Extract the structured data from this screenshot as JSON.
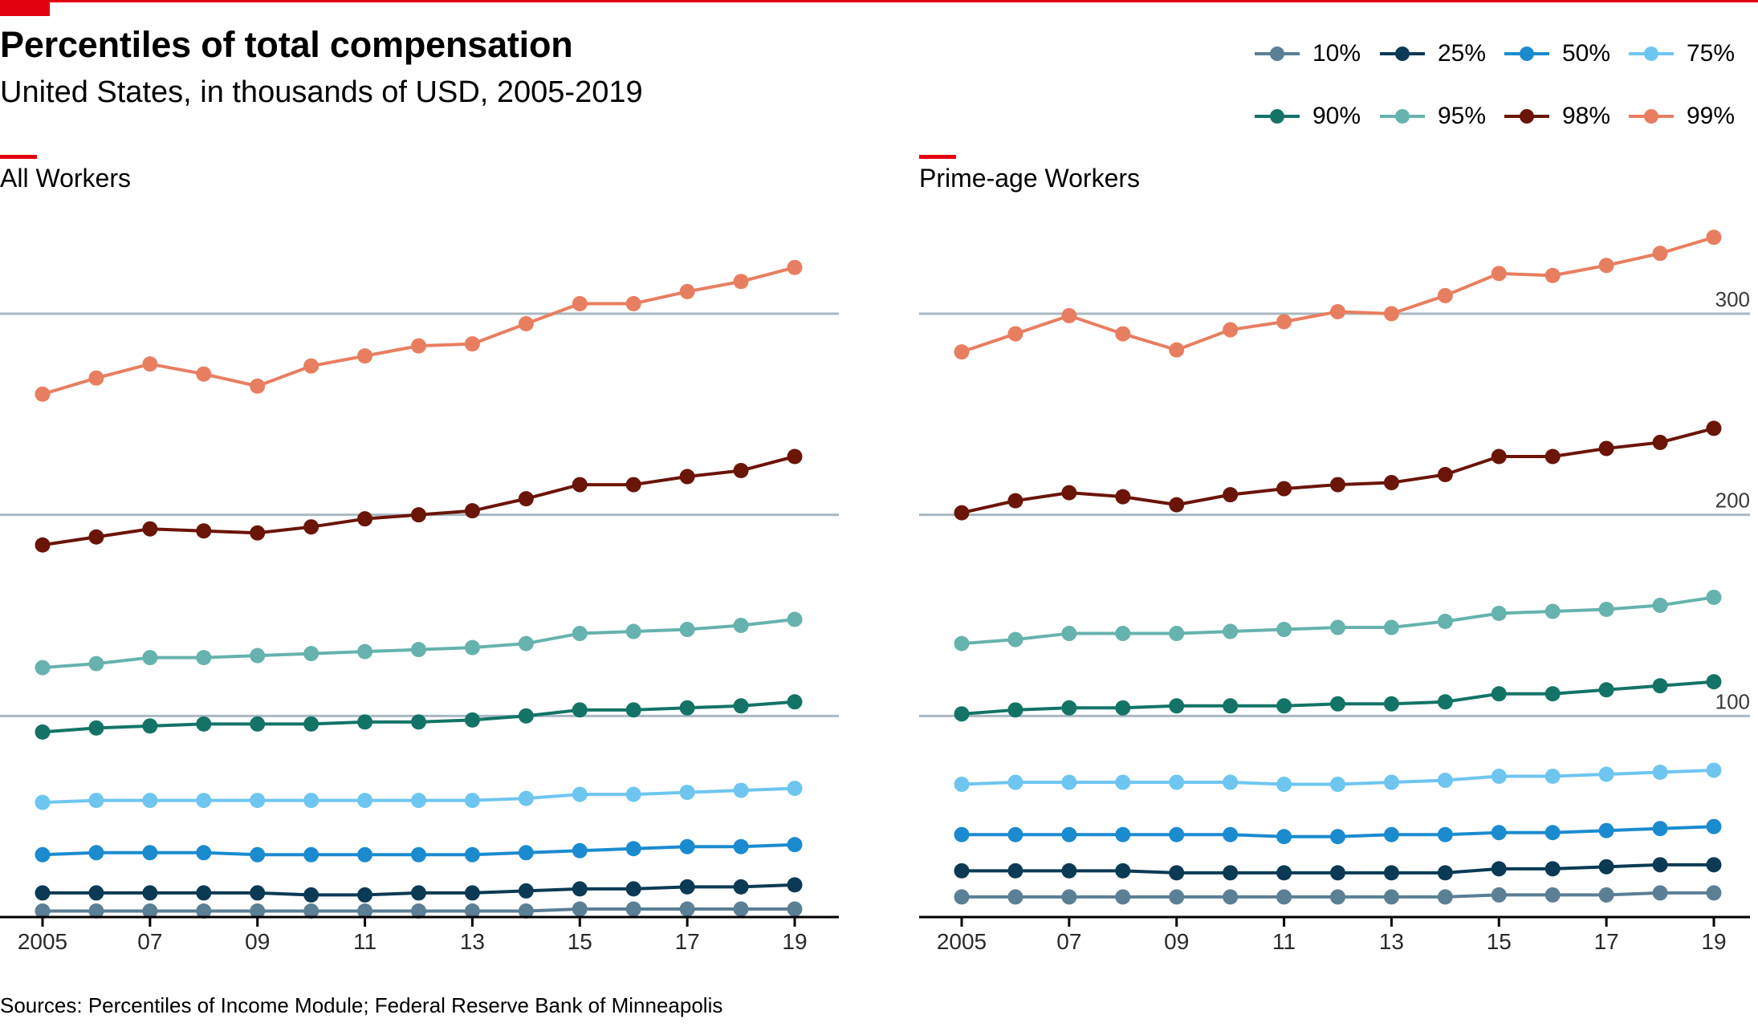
{
  "title": "Percentiles of total compensation",
  "subtitle": "United States, in thousands of USD, 2005-2019",
  "source": "Sources: Percentiles of Income Module; Federal Reserve Bank of Minneapolis",
  "colors": {
    "accent": "#e3000f",
    "grid": "#a9b8c2",
    "axis": "#000000"
  },
  "legend": [
    {
      "label": "10%",
      "color": "#5b7f95"
    },
    {
      "label": "25%",
      "color": "#0b3a54"
    },
    {
      "label": "50%",
      "color": "#1b8bcf"
    },
    {
      "label": "75%",
      "color": "#6ec6f0"
    },
    {
      "label": "90%",
      "color": "#137466"
    },
    {
      "label": "95%",
      "color": "#66b3ad"
    },
    {
      "label": "98%",
      "color": "#6b1408"
    },
    {
      "label": "99%",
      "color": "#e87e60"
    }
  ],
  "chart_data": [
    {
      "type": "line",
      "title": "All Workers",
      "x": [
        2005,
        2006,
        2007,
        2008,
        2009,
        2010,
        2011,
        2012,
        2013,
        2014,
        2015,
        2016,
        2017,
        2018,
        2019
      ],
      "xticks": [
        "2005",
        "07",
        "09",
        "11",
        "13",
        "15",
        "17",
        "19"
      ],
      "ylim": [
        0,
        340
      ],
      "yticks": [
        100,
        200,
        300
      ],
      "grid": true,
      "series": [
        {
          "name": "10%",
          "values": [
            3,
            3,
            3,
            3,
            3,
            3,
            3,
            3,
            3,
            3,
            4,
            4,
            4,
            4,
            4
          ]
        },
        {
          "name": "25%",
          "values": [
            12,
            12,
            12,
            12,
            12,
            11,
            11,
            12,
            12,
            13,
            14,
            14,
            15,
            15,
            16
          ]
        },
        {
          "name": "50%",
          "values": [
            31,
            32,
            32,
            32,
            31,
            31,
            31,
            31,
            31,
            32,
            33,
            34,
            35,
            35,
            36
          ]
        },
        {
          "name": "75%",
          "values": [
            57,
            58,
            58,
            58,
            58,
            58,
            58,
            58,
            58,
            59,
            61,
            61,
            62,
            63,
            64
          ]
        },
        {
          "name": "90%",
          "values": [
            92,
            94,
            95,
            96,
            96,
            96,
            97,
            97,
            98,
            100,
            103,
            103,
            104,
            105,
            107
          ]
        },
        {
          "name": "95%",
          "values": [
            124,
            126,
            129,
            129,
            130,
            131,
            132,
            133,
            134,
            136,
            141,
            142,
            143,
            145,
            148
          ]
        },
        {
          "name": "98%",
          "values": [
            185,
            189,
            193,
            192,
            191,
            194,
            198,
            200,
            202,
            208,
            215,
            215,
            219,
            222,
            229
          ]
        },
        {
          "name": "99%",
          "values": [
            260,
            268,
            275,
            270,
            264,
            274,
            279,
            284,
            285,
            295,
            305,
            305,
            311,
            316,
            323
          ]
        }
      ]
    },
    {
      "type": "line",
      "title": "Prime-age Workers",
      "x": [
        2005,
        2006,
        2007,
        2008,
        2009,
        2010,
        2011,
        2012,
        2013,
        2014,
        2015,
        2016,
        2017,
        2018,
        2019
      ],
      "xticks": [
        "2005",
        "07",
        "09",
        "11",
        "13",
        "15",
        "17",
        "19"
      ],
      "ylim": [
        0,
        340
      ],
      "yticks": [
        100,
        200,
        300
      ],
      "grid": true,
      "series": [
        {
          "name": "10%",
          "values": [
            10,
            10,
            10,
            10,
            10,
            10,
            10,
            10,
            10,
            10,
            11,
            11,
            11,
            12,
            12
          ]
        },
        {
          "name": "25%",
          "values": [
            23,
            23,
            23,
            23,
            22,
            22,
            22,
            22,
            22,
            22,
            24,
            24,
            25,
            26,
            26
          ]
        },
        {
          "name": "50%",
          "values": [
            41,
            41,
            41,
            41,
            41,
            41,
            40,
            40,
            41,
            41,
            42,
            42,
            43,
            44,
            45
          ]
        },
        {
          "name": "75%",
          "values": [
            66,
            67,
            67,
            67,
            67,
            67,
            66,
            66,
            67,
            68,
            70,
            70,
            71,
            72,
            73
          ]
        },
        {
          "name": "90%",
          "values": [
            101,
            103,
            104,
            104,
            105,
            105,
            105,
            106,
            106,
            107,
            111,
            111,
            113,
            115,
            117
          ]
        },
        {
          "name": "95%",
          "values": [
            136,
            138,
            141,
            141,
            141,
            142,
            143,
            144,
            144,
            147,
            151,
            152,
            153,
            155,
            159
          ]
        },
        {
          "name": "98%",
          "values": [
            201,
            207,
            211,
            209,
            205,
            210,
            213,
            215,
            216,
            220,
            229,
            229,
            233,
            236,
            243
          ]
        },
        {
          "name": "99%",
          "values": [
            281,
            290,
            299,
            290,
            282,
            292,
            296,
            301,
            300,
            309,
            320,
            319,
            324,
            330,
            338
          ]
        }
      ]
    }
  ]
}
